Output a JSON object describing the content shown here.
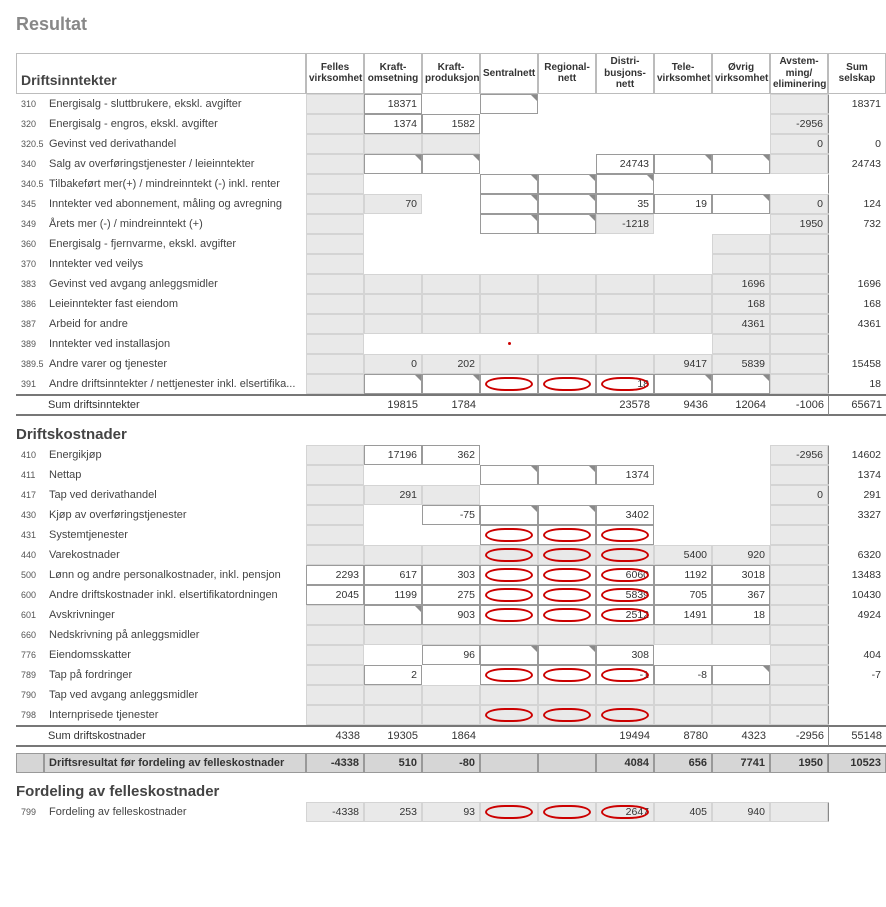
{
  "page_title": "Resultat",
  "colors": {
    "accent": "#e46c0a",
    "circle": "#cc0000",
    "shade": "#e9e9e9",
    "border": "#9a9a9a"
  },
  "columns": [
    "Felles virksomhet",
    "Kraft- omsetning",
    "Kraft- produksjon",
    "Sentralnett",
    "Regional- nett",
    "Distri- busjons- nett",
    "Tele- virksomhet",
    "Øvrig virksomhet",
    "Avstem- ming/ eliminering",
    "Sum selskap"
  ],
  "col_keys": [
    "felles",
    "kraft_oms",
    "kraft_prod",
    "sentral",
    "regional",
    "distri",
    "tele",
    "ovrig",
    "avstem",
    "sum"
  ],
  "sec_drift_inn": {
    "title": "Driftsinntekter",
    "rows": [
      {
        "code": "310",
        "label": "Energisalg - sluttbrukere, ekskl. avgifter",
        "cells": {
          "felles": "lock",
          "kraft_oms": "input:18371",
          "kraft_prod": "blank",
          "sentral": "corner",
          "regional": "blank",
          "distri": "blank",
          "tele": "blank",
          "ovrig": "blank",
          "avstem": "shade",
          "sum": "sum:18371"
        }
      },
      {
        "code": "320",
        "label": "Energisalg - engros, ekskl. avgifter",
        "cells": {
          "felles": "lock",
          "kraft_oms": "input:1374",
          "kraft_prod": "input:1582",
          "sentral": "blank",
          "regional": "blank",
          "distri": "blank",
          "tele": "blank",
          "ovrig": "blank",
          "avstem": "shade:-2956",
          "sum": "sum:"
        }
      },
      {
        "code": "320.5",
        "label": "Gevinst ved derivathandel",
        "cells": {
          "felles": "lock",
          "kraft_oms": "shade",
          "kraft_prod": "shade",
          "sentral": "blank",
          "regional": "blank",
          "distri": "blank",
          "tele": "blank",
          "ovrig": "blank",
          "avstem": "shade:0",
          "sum": "sum:0"
        }
      },
      {
        "code": "340",
        "label": "Salg av overføringstjenester / leieinntekter",
        "cells": {
          "felles": "lock",
          "kraft_oms": "corner",
          "kraft_prod": "corner",
          "sentral": "blank",
          "regional": "blank",
          "distri": "input:24743",
          "tele": "corner",
          "ovrig": "corner",
          "avstem": "shade",
          "sum": "sum:24743"
        }
      },
      {
        "code": "340.5",
        "label": "Tilbakeført mer(+) / mindreinntekt (-) inkl. renter",
        "cells": {
          "felles": "lock",
          "kraft_oms": "blank",
          "kraft_prod": "blank",
          "sentral": "corner",
          "regional": "corner",
          "distri": "corner",
          "tele": "blank",
          "ovrig": "blank",
          "avstem": "blank",
          "sum": "sum:"
        }
      },
      {
        "code": "345",
        "label": "Inntekter ved abonnement, måling og avregning",
        "cells": {
          "felles": "lock",
          "kraft_oms": "shade:70",
          "kraft_prod": "blank",
          "sentral": "corner",
          "regional": "corner",
          "distri": "input:35",
          "tele": "input:19",
          "ovrig": "corner",
          "avstem": "shade:0",
          "sum": "sum:124"
        }
      },
      {
        "code": "349",
        "label": "Årets mer (-) / mindreinntekt (+)",
        "cells": {
          "felles": "lock",
          "kraft_oms": "blank",
          "kraft_prod": "blank",
          "sentral": "corner",
          "regional": "corner",
          "distri": "shade:-1218",
          "tele": "blank",
          "ovrig": "blank",
          "avstem": "shade:1950",
          "sum": "sum:732"
        }
      },
      {
        "code": "360",
        "label": "Energisalg - fjernvarme, ekskl. avgifter",
        "cells": {
          "felles": "lock",
          "kraft_oms": "blank",
          "kraft_prod": "blank",
          "sentral": "blank",
          "regional": "blank",
          "distri": "blank",
          "tele": "blank",
          "ovrig": "shade",
          "avstem": "shade",
          "sum": "sum:"
        }
      },
      {
        "code": "370",
        "label": "Inntekter ved veilys",
        "cells": {
          "felles": "lock",
          "kraft_oms": "blank",
          "kraft_prod": "blank",
          "sentral": "blank",
          "regional": "blank",
          "distri": "blank",
          "tele": "blank",
          "ovrig": "shade",
          "avstem": "shade",
          "sum": "sum:"
        }
      },
      {
        "code": "383",
        "label": "Gevinst ved avgang anleggsmidler",
        "cells": {
          "felles": "lock",
          "kraft_oms": "shade",
          "kraft_prod": "shade",
          "sentral": "shade",
          "regional": "shade",
          "distri": "shade",
          "tele": "shade",
          "ovrig": "shade:1696",
          "avstem": "shade",
          "sum": "sum:1696"
        }
      },
      {
        "code": "386",
        "label": "Leieinntekter fast eiendom",
        "cells": {
          "felles": "lock",
          "kraft_oms": "shade",
          "kraft_prod": "shade",
          "sentral": "shade",
          "regional": "shade",
          "distri": "shade",
          "tele": "shade",
          "ovrig": "shade:168",
          "avstem": "shade",
          "sum": "sum:168"
        }
      },
      {
        "code": "387",
        "label": "Arbeid for andre",
        "cells": {
          "felles": "lock",
          "kraft_oms": "shade",
          "kraft_prod": "shade",
          "sentral": "shade",
          "regional": "shade",
          "distri": "shade",
          "tele": "shade",
          "ovrig": "shade:4361",
          "avstem": "shade",
          "sum": "sum:4361"
        }
      },
      {
        "code": "389",
        "label": "Inntekter ved installasjon",
        "cells": {
          "felles": "lock",
          "kraft_oms": "blank",
          "kraft_prod": "blank",
          "sentral": "dot",
          "regional": "blank",
          "distri": "blank",
          "tele": "blank",
          "ovrig": "shade",
          "avstem": "shade",
          "sum": "sum:"
        }
      },
      {
        "code": "389.5",
        "label": "Andre varer og tjenester",
        "cells": {
          "felles": "lock",
          "kraft_oms": "shade:0",
          "kraft_prod": "shade:202",
          "sentral": "shade",
          "regional": "shade",
          "distri": "shade",
          "tele": "shade:9417",
          "ovrig": "shade:5839",
          "avstem": "shade",
          "sum": "sum:15458"
        }
      },
      {
        "code": "391",
        "label": "Andre driftsinntekter / nettjenester inkl. elsertifika...",
        "cells": {
          "felles": "lock",
          "kraft_oms": "corner",
          "kraft_prod": "corner",
          "sentral": "corner circle",
          "regional": "corner circle",
          "distri": "input circle:18",
          "tele": "corner",
          "ovrig": "corner",
          "avstem": "shade",
          "sum": "sum:18"
        }
      }
    ],
    "total": {
      "label": "Sum driftsinntekter",
      "cells": {
        "felles": "",
        "kraft_oms": "19815",
        "kraft_prod": "1784",
        "sentral": "",
        "regional": "",
        "distri": "23578",
        "tele": "9436",
        "ovrig": "12064",
        "avstem": "-1006",
        "sum": "65671"
      }
    }
  },
  "sec_drift_kost": {
    "title": "Driftskostnader",
    "rows": [
      {
        "code": "410",
        "label": "Energikjøp",
        "cells": {
          "felles": "lock",
          "kraft_oms": "input:17196",
          "kraft_prod": "input:362",
          "sentral": "blank",
          "regional": "blank",
          "distri": "blank",
          "tele": "blank",
          "ovrig": "blank",
          "avstem": "shade:-2956",
          "sum": "sum:14602"
        }
      },
      {
        "code": "411",
        "label": "Nettap",
        "cells": {
          "felles": "lock",
          "kraft_oms": "blank",
          "kraft_prod": "blank",
          "sentral": "corner",
          "regional": "corner",
          "distri": "input:1374",
          "tele": "blank",
          "ovrig": "blank",
          "avstem": "shade",
          "sum": "sum:1374"
        }
      },
      {
        "code": "417",
        "label": "Tap ved derivathandel",
        "cells": {
          "felles": "lock",
          "kraft_oms": "shade:291",
          "kraft_prod": "shade",
          "sentral": "blank",
          "regional": "blank",
          "distri": "blank",
          "tele": "blank",
          "ovrig": "blank",
          "avstem": "shade:0",
          "sum": "sum:291"
        }
      },
      {
        "code": "430",
        "label": "Kjøp av overføringstjenester",
        "cells": {
          "felles": "lock",
          "kraft_oms": "blank",
          "kraft_prod": "input:-75",
          "sentral": "corner",
          "regional": "corner",
          "distri": "input:3402",
          "tele": "blank",
          "ovrig": "blank",
          "avstem": "shade",
          "sum": "sum:3327"
        }
      },
      {
        "code": "431",
        "label": "Systemtjenester",
        "cells": {
          "felles": "lock",
          "kraft_oms": "blank",
          "kraft_prod": "blank",
          "sentral": "corner circle",
          "regional": "corner circle",
          "distri": "corner circle",
          "tele": "blank",
          "ovrig": "blank",
          "avstem": "shade",
          "sum": "sum:"
        }
      },
      {
        "code": "440",
        "label": "Varekostnader",
        "cells": {
          "felles": "lock",
          "kraft_oms": "shade",
          "kraft_prod": "shade",
          "sentral": "shade circle",
          "regional": "shade circle",
          "distri": "shade circle",
          "tele": "shade:5400",
          "ovrig": "shade:920",
          "avstem": "shade",
          "sum": "sum:6320"
        }
      },
      {
        "code": "500",
        "label": "Lønn og andre personalkostnader, inkl. pensjon",
        "cells": {
          "felles": "input:2293",
          "kraft_oms": "input:617",
          "kraft_prod": "input:303",
          "sentral": "corner circle",
          "regional": "corner circle",
          "distri": "input circle:6060",
          "tele": "input:1192",
          "ovrig": "input:3018",
          "avstem": "shade",
          "sum": "sum:13483"
        }
      },
      {
        "code": "600",
        "label": "Andre driftskostnader inkl. elsertifikatordningen",
        "cells": {
          "felles": "input:2045",
          "kraft_oms": "input:1199",
          "kraft_prod": "input:275",
          "sentral": "corner circle",
          "regional": "corner circle",
          "distri": "input circle:5839",
          "tele": "input:705",
          "ovrig": "input:367",
          "avstem": "shade",
          "sum": "sum:10430"
        }
      },
      {
        "code": "601",
        "label": "Avskrivninger",
        "cells": {
          "felles": "lock",
          "kraft_oms": "corner",
          "kraft_prod": "input:903",
          "sentral": "corner circle",
          "regional": "corner circle",
          "distri": "input circle:2512",
          "tele": "input:1491",
          "ovrig": "input:18",
          "avstem": "shade",
          "sum": "sum:4924"
        }
      },
      {
        "code": "660",
        "label": "Nedskrivning på anleggsmidler",
        "cells": {
          "felles": "lock",
          "kraft_oms": "shade",
          "kraft_prod": "shade",
          "sentral": "shade",
          "regional": "shade",
          "distri": "shade",
          "tele": "shade",
          "ovrig": "shade",
          "avstem": "shade",
          "sum": "sum:"
        }
      },
      {
        "code": "776",
        "label": "Eiendomsskatter",
        "cells": {
          "felles": "lock",
          "kraft_oms": "blank",
          "kraft_prod": "input:96",
          "sentral": "corner",
          "regional": "corner",
          "distri": "input:308",
          "tele": "blank",
          "ovrig": "blank",
          "avstem": "shade",
          "sum": "sum:404"
        }
      },
      {
        "code": "789",
        "label": "Tap på fordringer",
        "cells": {
          "felles": "lock",
          "kraft_oms": "input:2",
          "kraft_prod": "blank",
          "sentral": "corner circle",
          "regional": "corner circle",
          "distri": "input circle:-1",
          "tele": "input:-8",
          "ovrig": "corner",
          "avstem": "shade",
          "sum": "sum:-7"
        }
      },
      {
        "code": "790",
        "label": "Tap ved avgang anleggsmidler",
        "cells": {
          "felles": "lock",
          "kraft_oms": "shade",
          "kraft_prod": "shade",
          "sentral": "shade",
          "regional": "shade",
          "distri": "shade",
          "tele": "shade",
          "ovrig": "shade",
          "avstem": "shade",
          "sum": "sum:"
        }
      },
      {
        "code": "798",
        "label": "Internprisede tjenester",
        "cells": {
          "felles": "lock",
          "kraft_oms": "shade",
          "kraft_prod": "shade",
          "sentral": "shade circle",
          "regional": "shade circle",
          "distri": "shade circle",
          "tele": "shade",
          "ovrig": "shade",
          "avstem": "shade",
          "sum": "sum:"
        }
      }
    ],
    "total": {
      "label": "Sum driftskostnader",
      "cells": {
        "felles": "4338",
        "kraft_oms": "19305",
        "kraft_prod": "1864",
        "sentral": "",
        "regional": "",
        "distri": "19494",
        "tele": "8780",
        "ovrig": "4323",
        "avstem": "-2956",
        "sum": "55148"
      }
    }
  },
  "grand": {
    "label": "Driftsresultat før fordeling av felleskostnader",
    "cells": {
      "felles": "-4338",
      "kraft_oms": "510",
      "kraft_prod": "-80",
      "sentral": "",
      "regional": "",
      "distri": "4084",
      "tele": "656",
      "ovrig": "7741",
      "avstem": "1950",
      "sum": "10523"
    }
  },
  "sec_fordeling": {
    "title": "Fordeling av felleskostnader",
    "rows": [
      {
        "code": "799",
        "label": "Fordeling av felleskostnader",
        "cells": {
          "felles": "shade:-4338",
          "kraft_oms": "shade:253",
          "kraft_prod": "shade:93",
          "sentral": "shade circle",
          "regional": "shade circle",
          "distri": "shade circle:2647",
          "tele": "shade:405",
          "ovrig": "shade:940",
          "avstem": "shade",
          "sum": "sum:"
        }
      }
    ]
  }
}
